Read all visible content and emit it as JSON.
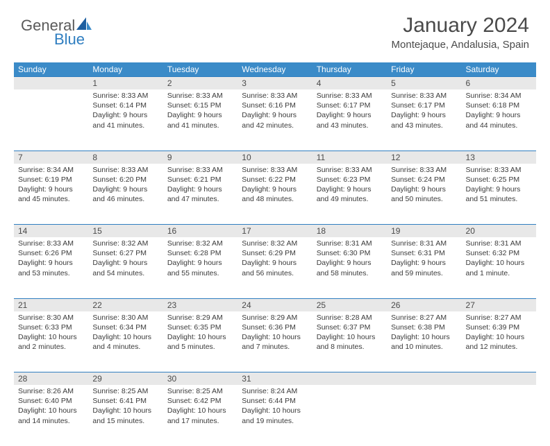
{
  "logo": {
    "word1": "General",
    "word2": "Blue"
  },
  "header": {
    "title": "January 2024",
    "location": "Montejaque, Andalusia, Spain"
  },
  "style": {
    "accent": "#3b8bc8",
    "row_rule": "#2f7ec0",
    "daynum_bg": "#e8e8e8",
    "text_color": "#3a3a3a",
    "header_color": "#4a4a4a",
    "title_fontsize": 30,
    "location_fontsize": 15,
    "dayhead_fontsize": 12,
    "cell_fontsize": 10.5
  },
  "dayHeaders": [
    "Sunday",
    "Monday",
    "Tuesday",
    "Wednesday",
    "Thursday",
    "Friday",
    "Saturday"
  ],
  "weeks": [
    [
      null,
      {
        "n": "1",
        "sr": "Sunrise: 8:33 AM",
        "ss": "Sunset: 6:14 PM",
        "dl": "Daylight: 9 hours and 41 minutes."
      },
      {
        "n": "2",
        "sr": "Sunrise: 8:33 AM",
        "ss": "Sunset: 6:15 PM",
        "dl": "Daylight: 9 hours and 41 minutes."
      },
      {
        "n": "3",
        "sr": "Sunrise: 8:33 AM",
        "ss": "Sunset: 6:16 PM",
        "dl": "Daylight: 9 hours and 42 minutes."
      },
      {
        "n": "4",
        "sr": "Sunrise: 8:33 AM",
        "ss": "Sunset: 6:17 PM",
        "dl": "Daylight: 9 hours and 43 minutes."
      },
      {
        "n": "5",
        "sr": "Sunrise: 8:33 AM",
        "ss": "Sunset: 6:17 PM",
        "dl": "Daylight: 9 hours and 43 minutes."
      },
      {
        "n": "6",
        "sr": "Sunrise: 8:34 AM",
        "ss": "Sunset: 6:18 PM",
        "dl": "Daylight: 9 hours and 44 minutes."
      }
    ],
    [
      {
        "n": "7",
        "sr": "Sunrise: 8:34 AM",
        "ss": "Sunset: 6:19 PM",
        "dl": "Daylight: 9 hours and 45 minutes."
      },
      {
        "n": "8",
        "sr": "Sunrise: 8:33 AM",
        "ss": "Sunset: 6:20 PM",
        "dl": "Daylight: 9 hours and 46 minutes."
      },
      {
        "n": "9",
        "sr": "Sunrise: 8:33 AM",
        "ss": "Sunset: 6:21 PM",
        "dl": "Daylight: 9 hours and 47 minutes."
      },
      {
        "n": "10",
        "sr": "Sunrise: 8:33 AM",
        "ss": "Sunset: 6:22 PM",
        "dl": "Daylight: 9 hours and 48 minutes."
      },
      {
        "n": "11",
        "sr": "Sunrise: 8:33 AM",
        "ss": "Sunset: 6:23 PM",
        "dl": "Daylight: 9 hours and 49 minutes."
      },
      {
        "n": "12",
        "sr": "Sunrise: 8:33 AM",
        "ss": "Sunset: 6:24 PM",
        "dl": "Daylight: 9 hours and 50 minutes."
      },
      {
        "n": "13",
        "sr": "Sunrise: 8:33 AM",
        "ss": "Sunset: 6:25 PM",
        "dl": "Daylight: 9 hours and 51 minutes."
      }
    ],
    [
      {
        "n": "14",
        "sr": "Sunrise: 8:33 AM",
        "ss": "Sunset: 6:26 PM",
        "dl": "Daylight: 9 hours and 53 minutes."
      },
      {
        "n": "15",
        "sr": "Sunrise: 8:32 AM",
        "ss": "Sunset: 6:27 PM",
        "dl": "Daylight: 9 hours and 54 minutes."
      },
      {
        "n": "16",
        "sr": "Sunrise: 8:32 AM",
        "ss": "Sunset: 6:28 PM",
        "dl": "Daylight: 9 hours and 55 minutes."
      },
      {
        "n": "17",
        "sr": "Sunrise: 8:32 AM",
        "ss": "Sunset: 6:29 PM",
        "dl": "Daylight: 9 hours and 56 minutes."
      },
      {
        "n": "18",
        "sr": "Sunrise: 8:31 AM",
        "ss": "Sunset: 6:30 PM",
        "dl": "Daylight: 9 hours and 58 minutes."
      },
      {
        "n": "19",
        "sr": "Sunrise: 8:31 AM",
        "ss": "Sunset: 6:31 PM",
        "dl": "Daylight: 9 hours and 59 minutes."
      },
      {
        "n": "20",
        "sr": "Sunrise: 8:31 AM",
        "ss": "Sunset: 6:32 PM",
        "dl": "Daylight: 10 hours and 1 minute."
      }
    ],
    [
      {
        "n": "21",
        "sr": "Sunrise: 8:30 AM",
        "ss": "Sunset: 6:33 PM",
        "dl": "Daylight: 10 hours and 2 minutes."
      },
      {
        "n": "22",
        "sr": "Sunrise: 8:30 AM",
        "ss": "Sunset: 6:34 PM",
        "dl": "Daylight: 10 hours and 4 minutes."
      },
      {
        "n": "23",
        "sr": "Sunrise: 8:29 AM",
        "ss": "Sunset: 6:35 PM",
        "dl": "Daylight: 10 hours and 5 minutes."
      },
      {
        "n": "24",
        "sr": "Sunrise: 8:29 AM",
        "ss": "Sunset: 6:36 PM",
        "dl": "Daylight: 10 hours and 7 minutes."
      },
      {
        "n": "25",
        "sr": "Sunrise: 8:28 AM",
        "ss": "Sunset: 6:37 PM",
        "dl": "Daylight: 10 hours and 8 minutes."
      },
      {
        "n": "26",
        "sr": "Sunrise: 8:27 AM",
        "ss": "Sunset: 6:38 PM",
        "dl": "Daylight: 10 hours and 10 minutes."
      },
      {
        "n": "27",
        "sr": "Sunrise: 8:27 AM",
        "ss": "Sunset: 6:39 PM",
        "dl": "Daylight: 10 hours and 12 minutes."
      }
    ],
    [
      {
        "n": "28",
        "sr": "Sunrise: 8:26 AM",
        "ss": "Sunset: 6:40 PM",
        "dl": "Daylight: 10 hours and 14 minutes."
      },
      {
        "n": "29",
        "sr": "Sunrise: 8:25 AM",
        "ss": "Sunset: 6:41 PM",
        "dl": "Daylight: 10 hours and 15 minutes."
      },
      {
        "n": "30",
        "sr": "Sunrise: 8:25 AM",
        "ss": "Sunset: 6:42 PM",
        "dl": "Daylight: 10 hours and 17 minutes."
      },
      {
        "n": "31",
        "sr": "Sunrise: 8:24 AM",
        "ss": "Sunset: 6:44 PM",
        "dl": "Daylight: 10 hours and 19 minutes."
      },
      null,
      null,
      null
    ]
  ]
}
